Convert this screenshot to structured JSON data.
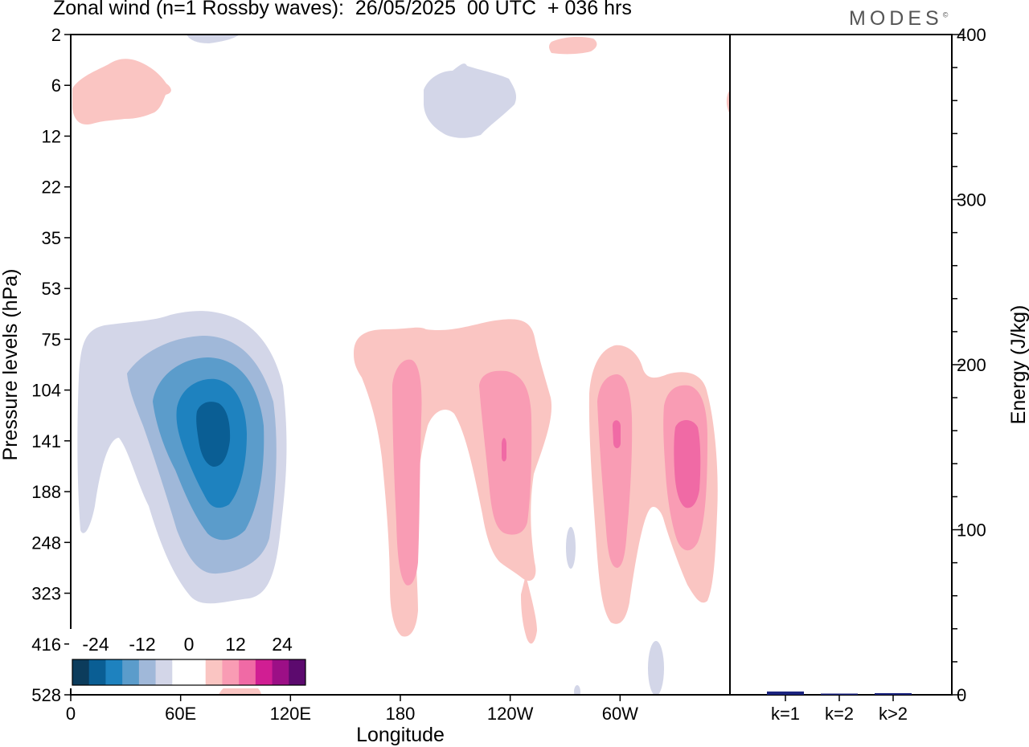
{
  "title": "Zonal wind (n=1 Rossby waves):  26/05/2025  00 UTC  + 036 hrs",
  "brand": "MODES",
  "brand_mark": "©",
  "colors": {
    "neg": [
      "#0c3c5c",
      "#0a5e94",
      "#1e82bf",
      "#5b9ccb",
      "#a0b8d9",
      "#d3d6e8"
    ],
    "zero": "#ffffff",
    "pos": [
      "#fac5c2",
      "#f99cb4",
      "#f06aa5",
      "#d11e93",
      "#9c0f86",
      "#5c0a6e"
    ],
    "energy_bar": "#1a237e"
  },
  "chart_data": [
    {
      "type": "heatmap",
      "xlabel": "Longitude",
      "ylabel": "Pressure levels (hPa)",
      "x_ticks": [
        "0",
        "60E",
        "120E",
        "180",
        "120W",
        "60W"
      ],
      "y_ticks": [
        "2",
        "6",
        "12",
        "22",
        "35",
        "53",
        "75",
        "104",
        "141",
        "188",
        "248",
        "323",
        "416",
        "528"
      ],
      "colorbar_labels": [
        "-24",
        "-12",
        "0",
        "12",
        "24"
      ],
      "levels": [
        -30,
        -24,
        -18,
        -12,
        -6,
        -3,
        3,
        6,
        12,
        18,
        24,
        30
      ],
      "features": [
        {
          "lon": 72,
          "lev": 141,
          "min": -27
        },
        {
          "lon": 7,
          "lev": 8,
          "max": 4
        },
        {
          "lon": 199,
          "lev": 8,
          "min": -4
        },
        {
          "lon": 182,
          "lev": 141,
          "max": 13
        },
        {
          "lon": 231,
          "lev": 141,
          "max": 16
        },
        {
          "lon": 286,
          "lev": 130,
          "max": 18
        },
        {
          "lon": 322,
          "lev": 150,
          "max": 20
        }
      ]
    },
    {
      "type": "bar",
      "ylabel": "Energy (J/kg)",
      "categories": [
        "k=1",
        "k=2",
        "k>2"
      ],
      "values": [
        2,
        0.5,
        1
      ],
      "ylim": [
        0,
        400
      ],
      "y_ticks": [
        "0",
        "100",
        "200",
        "300",
        "400"
      ]
    }
  ]
}
